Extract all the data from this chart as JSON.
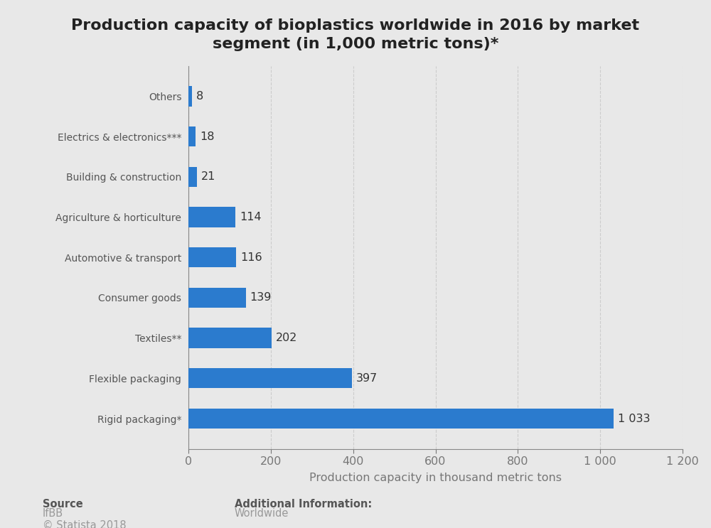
{
  "title": "Production capacity of bioplastics worldwide in 2016 by market\nsegment (in 1,000 metric tons)*",
  "categories": [
    "Others",
    "Electrics & electronics***",
    "Building & construction",
    "Agriculture & horticulture",
    "Automotive & transport",
    "Consumer goods",
    "Textiles**",
    "Flexible packaging",
    "Rigid packaging*"
  ],
  "values": [
    8,
    18,
    21,
    114,
    116,
    139,
    202,
    397,
    1033
  ],
  "value_labels": [
    "8",
    "18",
    "21",
    "114",
    "116",
    "139",
    "202",
    "397",
    "1 033"
  ],
  "bar_color": "#2b7bce",
  "background_color": "#e8e8e8",
  "plot_bg_color": "#e8e8e8",
  "xlabel": "Production capacity in thousand metric tons",
  "xlim": [
    0,
    1200
  ],
  "xticks": [
    0,
    200,
    400,
    600,
    800,
    1000,
    1200
  ],
  "xtick_labels": [
    "0",
    "200",
    "400",
    "600",
    "800",
    "1 000",
    "1 200"
  ],
  "title_fontsize": 16,
  "label_fontsize": 11.5,
  "tick_fontsize": 11.5,
  "value_label_fontsize": 11.5,
  "ylabel_color": "#555555",
  "yticklabel_color": "#555555",
  "source_bold": "Source",
  "source_normal": "IfBB\n© Statista 2018",
  "additional_info_label": "Additional Information:",
  "additional_info_value": "Worldwide",
  "footer_fontsize": 10.5,
  "bar_height": 0.5
}
